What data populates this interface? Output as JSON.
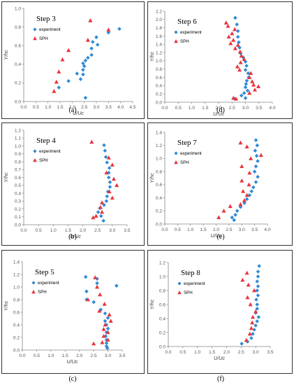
{
  "chart_data": [
    {
      "type": "scatter",
      "caption": "(a)",
      "step_label": "Step 3",
      "xlabel": "U/Uc",
      "ylabel": "Y/hc",
      "xlim": [
        0,
        4.5
      ],
      "xstep": 0.5,
      "xdecimals": 1,
      "ylim": [
        0,
        1.0
      ],
      "ystep": 0.2,
      "ydecimals": 1,
      "series": [
        {
          "name": "experiment",
          "marker": "diamond",
          "color": "#2e8bd6",
          "points": [
            [
              3.95,
              0.78
            ],
            [
              3.5,
              0.74
            ],
            [
              3.0,
              0.69
            ],
            [
              3.05,
              0.61
            ],
            [
              2.85,
              0.64
            ],
            [
              2.8,
              0.57
            ],
            [
              2.8,
              0.5
            ],
            [
              2.65,
              0.47
            ],
            [
              2.55,
              0.44
            ],
            [
              2.45,
              0.41
            ],
            [
              2.5,
              0.38
            ],
            [
              2.45,
              0.34
            ],
            [
              2.45,
              0.29
            ],
            [
              2.2,
              0.3
            ],
            [
              2.35,
              0.24
            ],
            [
              1.85,
              0.22
            ],
            [
              1.45,
              0.15
            ],
            [
              2.55,
              0.04
            ]
          ]
        },
        {
          "name": "SPH",
          "marker": "triangle",
          "color": "#e8343e",
          "points": [
            [
              2.75,
              0.87
            ],
            [
              3.5,
              0.77
            ],
            [
              2.65,
              0.66
            ],
            [
              1.85,
              0.55
            ],
            [
              1.6,
              0.45
            ],
            [
              1.45,
              0.32
            ],
            [
              1.35,
              0.21
            ],
            [
              1.25,
              0.11
            ]
          ]
        }
      ]
    },
    {
      "type": "scatter",
      "caption": "(d)",
      "step_label": "Step 6",
      "xlabel": "U/Uc",
      "ylabel": "Y/hc",
      "xlim": [
        0,
        4.0
      ],
      "xstep": 0.5,
      "xdecimals": 1,
      "ylim": [
        0,
        2.2
      ],
      "ystep": 0.2,
      "ydecimals": 1,
      "series": [
        {
          "name": "experiment",
          "marker": "diamond",
          "color": "#2e8bd6",
          "points": [
            [
              2.62,
              2.04
            ],
            [
              2.68,
              1.88
            ],
            [
              2.72,
              1.72
            ],
            [
              2.72,
              1.58
            ],
            [
              2.75,
              1.45
            ],
            [
              2.78,
              1.32
            ],
            [
              2.82,
              1.18
            ],
            [
              2.92,
              1.08
            ],
            [
              3.0,
              0.98
            ],
            [
              3.04,
              0.88
            ],
            [
              3.0,
              0.78
            ],
            [
              3.1,
              0.7
            ],
            [
              3.12,
              0.6
            ],
            [
              3.05,
              0.52
            ],
            [
              3.02,
              0.44
            ],
            [
              3.0,
              0.36
            ],
            [
              3.08,
              0.28
            ],
            [
              2.95,
              0.22
            ],
            [
              2.85,
              0.16
            ],
            [
              3.0,
              0.1
            ],
            [
              2.6,
              0.08
            ]
          ]
        },
        {
          "name": "SPH",
          "marker": "triangle",
          "color": "#e8343e",
          "points": [
            [
              2.28,
              1.92
            ],
            [
              2.35,
              1.84
            ],
            [
              2.6,
              1.76
            ],
            [
              2.5,
              1.66
            ],
            [
              2.38,
              1.58
            ],
            [
              2.55,
              1.5
            ],
            [
              2.45,
              1.42
            ],
            [
              2.72,
              1.38
            ],
            [
              2.62,
              1.3
            ],
            [
              2.8,
              1.22
            ],
            [
              2.85,
              1.12
            ],
            [
              2.95,
              1.04
            ],
            [
              2.82,
              0.96
            ],
            [
              2.7,
              0.86
            ],
            [
              2.78,
              0.78
            ],
            [
              3.2,
              0.7
            ],
            [
              3.15,
              0.6
            ],
            [
              3.25,
              0.5
            ],
            [
              3.3,
              0.42
            ],
            [
              3.48,
              0.38
            ],
            [
              3.35,
              0.3
            ],
            [
              3.15,
              0.22
            ],
            [
              2.55,
              0.1
            ],
            [
              2.65,
              0.08
            ]
          ]
        }
      ]
    },
    {
      "type": "scatter",
      "caption": "(b)",
      "step_label": "Step 4",
      "xlabel": "U/Uc",
      "ylabel": "Y/hc",
      "xlim": [
        0,
        3.5
      ],
      "xstep": 0.5,
      "xdecimals": 1,
      "ylim": [
        0,
        1.2
      ],
      "ystep": 0.1,
      "ydecimals": 1,
      "series": [
        {
          "name": "experiment",
          "marker": "diamond",
          "color": "#2e8bd6",
          "points": [
            [
              2.72,
              1.01
            ],
            [
              2.75,
              0.94
            ],
            [
              2.78,
              0.86
            ],
            [
              2.82,
              0.79
            ],
            [
              2.9,
              0.72
            ],
            [
              2.88,
              0.66
            ],
            [
              2.88,
              0.6
            ],
            [
              2.92,
              0.54
            ],
            [
              2.92,
              0.48
            ],
            [
              2.85,
              0.42
            ],
            [
              2.82,
              0.36
            ],
            [
              2.8,
              0.3
            ],
            [
              2.72,
              0.25
            ],
            [
              2.58,
              0.21
            ],
            [
              2.52,
              0.16
            ],
            [
              2.62,
              0.11
            ],
            [
              2.7,
              0.05
            ]
          ]
        },
        {
          "name": "SPH",
          "marker": "triangle",
          "color": "#e8343e",
          "points": [
            [
              2.3,
              1.05
            ],
            [
              2.88,
              0.85
            ],
            [
              3.0,
              0.76
            ],
            [
              2.8,
              0.66
            ],
            [
              3.05,
              0.58
            ],
            [
              3.15,
              0.5
            ],
            [
              2.9,
              0.42
            ],
            [
              3.0,
              0.34
            ],
            [
              2.65,
              0.28
            ],
            [
              2.6,
              0.22
            ],
            [
              2.65,
              0.16
            ],
            [
              2.45,
              0.11
            ],
            [
              2.35,
              0.09
            ]
          ]
        }
      ]
    },
    {
      "type": "scatter",
      "caption": "(e)",
      "step_label": "Step 7",
      "xlabel": "U/Uc",
      "ylabel": "Y/hc",
      "xlim": [
        0,
        4.0
      ],
      "xstep": 0.5,
      "xdecimals": 1,
      "ylim": [
        0,
        1.4
      ],
      "ystep": 0.2,
      "ydecimals": 1,
      "series": [
        {
          "name": "experiment",
          "marker": "diamond",
          "color": "#2e8bd6",
          "points": [
            [
              3.55,
              1.28
            ],
            [
              3.6,
              1.2
            ],
            [
              3.52,
              1.12
            ],
            [
              3.58,
              1.04
            ],
            [
              3.62,
              0.96
            ],
            [
              3.55,
              0.88
            ],
            [
              3.5,
              0.8
            ],
            [
              3.62,
              0.72
            ],
            [
              3.55,
              0.64
            ],
            [
              3.45,
              0.56
            ],
            [
              3.38,
              0.5
            ],
            [
              3.3,
              0.44
            ],
            [
              3.2,
              0.38
            ],
            [
              3.1,
              0.32
            ],
            [
              2.95,
              0.26
            ],
            [
              2.82,
              0.2
            ],
            [
              2.75,
              0.14
            ],
            [
              2.62,
              0.1
            ],
            [
              2.7,
              0.06
            ]
          ]
        },
        {
          "name": "SPH",
          "marker": "triangle",
          "color": "#e8343e",
          "points": [
            [
              2.95,
              1.24
            ],
            [
              3.2,
              1.18
            ],
            [
              3.75,
              1.05
            ],
            [
              3.35,
              1.0
            ],
            [
              3.0,
              0.88
            ],
            [
              3.3,
              0.78
            ],
            [
              3.0,
              0.66
            ],
            [
              3.28,
              0.6
            ],
            [
              3.05,
              0.5
            ],
            [
              3.2,
              0.44
            ],
            [
              3.1,
              0.36
            ],
            [
              2.95,
              0.3
            ],
            [
              2.55,
              0.27
            ],
            [
              2.3,
              0.2
            ],
            [
              2.1,
              0.1
            ]
          ]
        }
      ]
    },
    {
      "type": "scatter",
      "caption": "(c)",
      "step_label": "Step 5",
      "xlabel": "U/Uc",
      "ylabel": "Y/hc",
      "xlim": [
        0,
        3.5
      ],
      "xstep": 0.5,
      "xdecimals": 1,
      "ylim": [
        0,
        1.4
      ],
      "ystep": 0.2,
      "ydecimals": 1,
      "series": [
        {
          "name": "experiment",
          "marker": "diamond",
          "color": "#2e8bd6",
          "points": [
            [
              3.3,
              1.02
            ],
            [
              2.22,
              1.16
            ],
            [
              2.62,
              1.13
            ],
            [
              2.62,
              1.06
            ],
            [
              2.25,
              0.93
            ],
            [
              2.25,
              0.8
            ],
            [
              2.5,
              0.76
            ],
            [
              2.75,
              0.64
            ],
            [
              2.9,
              0.58
            ],
            [
              3.0,
              0.51
            ],
            [
              2.9,
              0.46
            ],
            [
              2.95,
              0.4
            ],
            [
              3.0,
              0.34
            ],
            [
              2.95,
              0.28
            ],
            [
              2.92,
              0.22
            ],
            [
              2.95,
              0.16
            ],
            [
              2.95,
              0.11
            ],
            [
              2.95,
              0.06
            ],
            [
              2.98,
              0.03
            ]
          ]
        },
        {
          "name": "SPH",
          "marker": "triangle",
          "color": "#e8343e",
          "points": [
            [
              2.55,
              1.15
            ],
            [
              2.62,
              1.0
            ],
            [
              2.72,
              0.88
            ],
            [
              2.3,
              0.8
            ],
            [
              2.88,
              0.73
            ],
            [
              2.7,
              0.62
            ],
            [
              3.05,
              0.56
            ],
            [
              3.1,
              0.46
            ],
            [
              2.9,
              0.4
            ],
            [
              2.85,
              0.33
            ],
            [
              3.0,
              0.28
            ],
            [
              2.85,
              0.22
            ],
            [
              3.0,
              0.16
            ],
            [
              2.8,
              0.12
            ],
            [
              2.5,
              0.1
            ]
          ]
        }
      ]
    },
    {
      "type": "scatter",
      "caption": "(f)",
      "step_label": "Step 8",
      "xlabel": "U/Uc",
      "ylabel": "Y/hc",
      "xlim": [
        0,
        3.5
      ],
      "xstep": 0.5,
      "xdecimals": 1,
      "ylim": [
        0,
        1.2
      ],
      "ystep": 0.2,
      "ydecimals": 1,
      "series": [
        {
          "name": "experiment",
          "marker": "diamond",
          "color": "#2e8bd6",
          "points": [
            [
              3.12,
              1.15
            ],
            [
              3.08,
              1.07
            ],
            [
              3.08,
              1.0
            ],
            [
              3.05,
              0.93
            ],
            [
              3.08,
              0.86
            ],
            [
              3.05,
              0.8
            ],
            [
              3.08,
              0.73
            ],
            [
              3.02,
              0.67
            ],
            [
              3.05,
              0.6
            ],
            [
              3.05,
              0.54
            ],
            [
              3.0,
              0.48
            ],
            [
              3.1,
              0.42
            ],
            [
              3.05,
              0.36
            ],
            [
              3.0,
              0.3
            ],
            [
              2.95,
              0.24
            ],
            [
              2.9,
              0.18
            ],
            [
              2.85,
              0.12
            ],
            [
              2.72,
              0.07
            ],
            [
              2.52,
              0.04
            ]
          ]
        },
        {
          "name": "SPH",
          "marker": "triangle",
          "color": "#e8343e",
          "points": [
            [
              2.7,
              1.05
            ],
            [
              2.55,
              0.95
            ],
            [
              2.75,
              0.88
            ],
            [
              2.95,
              0.8
            ],
            [
              2.72,
              0.7
            ],
            [
              2.82,
              0.6
            ],
            [
              3.0,
              0.5
            ],
            [
              2.9,
              0.42
            ],
            [
              2.88,
              0.34
            ],
            [
              2.85,
              0.26
            ],
            [
              2.8,
              0.18
            ],
            [
              2.68,
              0.09
            ]
          ]
        }
      ]
    }
  ]
}
